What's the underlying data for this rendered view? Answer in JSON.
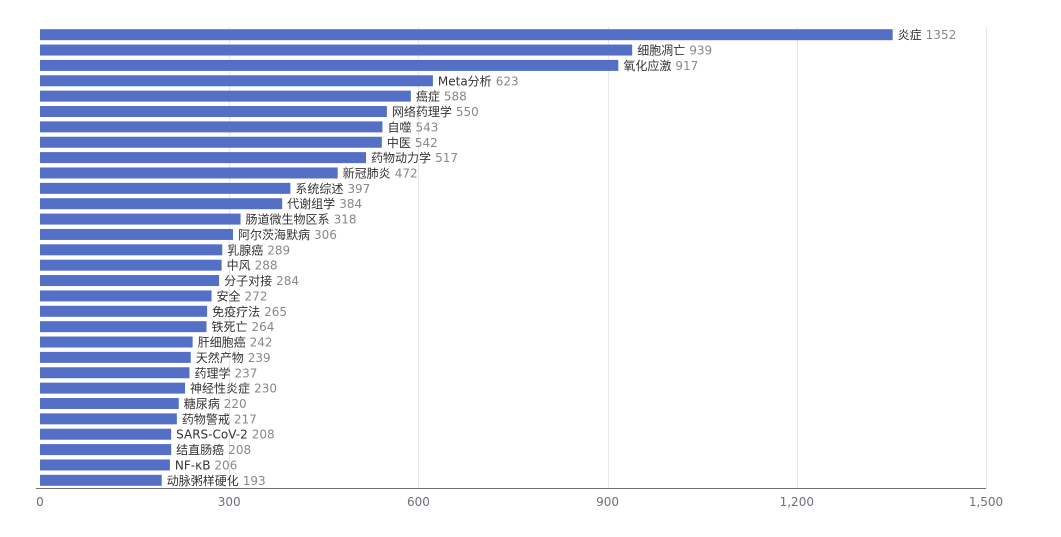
{
  "chart_data": {
    "type": "bar",
    "orientation": "horizontal",
    "title": "",
    "xlabel": "",
    "ylabel": "",
    "xlim": [
      0,
      1500
    ],
    "x_ticks": [
      "0",
      "300",
      "600",
      "900",
      "1,200",
      "1,500"
    ],
    "x_tick_values": [
      0,
      300,
      600,
      900,
      1200,
      1500
    ],
    "grid": "vertical",
    "bar_color": "#5470c6",
    "categories": [
      "炎症",
      "细胞凋亡",
      "氧化应激",
      "Meta分析",
      "癌症",
      "网络药理学",
      "自噬",
      "中医",
      "药物动力学",
      "新冠肺炎",
      "系统综述",
      "代谢组学",
      "肠道微生物区系",
      "阿尔茨海默病",
      "乳腺癌",
      "中风",
      "分子对接",
      "安全",
      "免疫疗法",
      "铁死亡",
      "肝细胞癌",
      "天然产物",
      "药理学",
      "神经性炎症",
      "糖尿病",
      "药物警戒",
      "SARS-CoV-2",
      "结直肠癌",
      "NF-κB",
      "动脉粥样硬化"
    ],
    "values": [
      1352,
      939,
      917,
      623,
      588,
      550,
      543,
      542,
      517,
      472,
      397,
      384,
      318,
      306,
      289,
      288,
      284,
      272,
      265,
      264,
      242,
      239,
      237,
      230,
      220,
      217,
      208,
      208,
      206,
      193
    ]
  }
}
